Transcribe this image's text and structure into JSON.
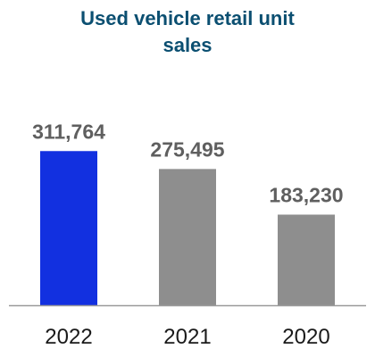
{
  "chart_data": {
    "type": "bar",
    "title_lines": [
      "Used vehicle retail unit",
      "sales"
    ],
    "categories": [
      "2022",
      "2021",
      "2020"
    ],
    "values": [
      311764,
      275495,
      183230
    ],
    "value_labels": [
      "311,764",
      "275,495",
      "183,230"
    ],
    "colors": [
      "#1230e0",
      "#8e8e8e",
      "#8e8e8e"
    ],
    "axis_color": "#9a9a9a",
    "ylim": [
      0,
      370000
    ],
    "grid": false,
    "legend": "none"
  }
}
